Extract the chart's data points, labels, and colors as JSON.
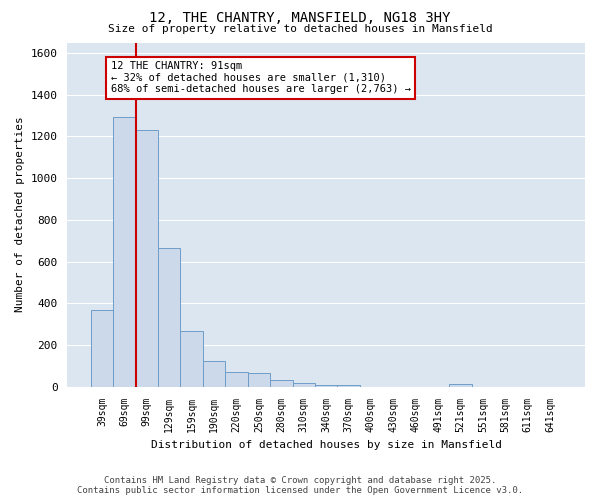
{
  "title": "12, THE CHANTRY, MANSFIELD, NG18 3HY",
  "subtitle": "Size of property relative to detached houses in Mansfield",
  "xlabel": "Distribution of detached houses by size in Mansfield",
  "ylabel": "Number of detached properties",
  "categories": [
    "39sqm",
    "69sqm",
    "99sqm",
    "129sqm",
    "159sqm",
    "190sqm",
    "220sqm",
    "250sqm",
    "280sqm",
    "310sqm",
    "340sqm",
    "370sqm",
    "400sqm",
    "430sqm",
    "460sqm",
    "491sqm",
    "521sqm",
    "551sqm",
    "581sqm",
    "611sqm",
    "641sqm"
  ],
  "values": [
    370,
    1295,
    1230,
    665,
    265,
    125,
    70,
    65,
    30,
    20,
    10,
    10,
    0,
    0,
    0,
    0,
    15,
    0,
    0,
    0,
    0
  ],
  "bar_color": "#ccd9ea",
  "bar_edge_color": "#6e9dc8",
  "background_color": "#dce6f1",
  "grid_color": "#ffffff",
  "annotation_text": "12 THE CHANTRY: 91sqm\n← 32% of detached houses are smaller (1,310)\n68% of semi-detached houses are larger (2,763) →",
  "annotation_box_color": "#ffffff",
  "annotation_box_edge": "#cc0000",
  "vline_color": "#cc0000",
  "vline_x": 1.5,
  "ylim": [
    0,
    1650
  ],
  "yticks": [
    0,
    200,
    400,
    600,
    800,
    1000,
    1200,
    1400,
    1600
  ],
  "footer_text": "Contains HM Land Registry data © Crown copyright and database right 2025.\nContains public sector information licensed under the Open Government Licence v3.0.",
  "fig_bg": "#ffffff"
}
